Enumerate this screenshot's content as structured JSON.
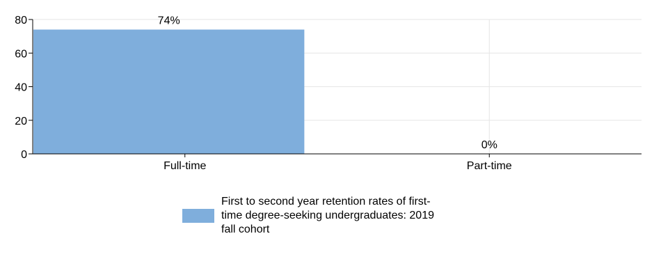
{
  "chart_data": {
    "type": "bar",
    "categories": [
      "Full-time",
      "Part-time"
    ],
    "values": [
      74,
      0
    ],
    "data_labels": [
      "74%",
      "0%"
    ],
    "series": [
      {
        "name": "First to second year retention rates of first-time degree-seeking undergraduates: 2019 fall cohort",
        "values": [
          74,
          0
        ]
      }
    ],
    "title": "",
    "xlabel": "",
    "ylabel": "",
    "ylim": [
      0,
      80
    ],
    "yticks": [
      0,
      20,
      40,
      60,
      80
    ],
    "grid": true,
    "legend_position": "bottom",
    "bar_color": "#7FAEDC"
  },
  "legend": {
    "label": "First to second year retention rates of first-time degree-seeking undergraduates: 2019 fall cohort"
  }
}
